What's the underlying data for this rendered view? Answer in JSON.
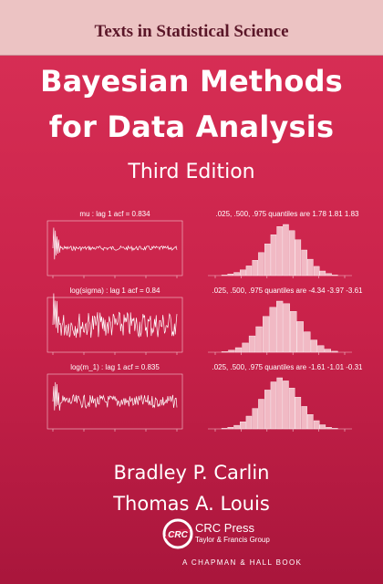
{
  "cover": {
    "series": "Texts in Statistical Science",
    "title_line1": "Bayesian Methods",
    "title_line2": "for Data Analysis",
    "edition": "Third Edition",
    "author1": "Bradley P. Carlin",
    "author2": "Thomas A. Louis",
    "publisher": "CRC Press",
    "publisher_group": "Taylor & Francis Group",
    "book_line": "A CHAPMAN & HALL BOOK",
    "logo_text": "CRC",
    "colors": {
      "background": "#c9224a",
      "band": "#ecc3c3",
      "series_text": "#5a1628",
      "text": "#ffffff"
    }
  },
  "figure": {
    "rows": [
      {
        "trace_title": "mu : lag 1 acf = 0.834",
        "hist_title": ".025, .500, .975 quantiles are 1.78 1.81 1.83",
        "hist_bars": [
          1,
          3,
          6,
          11,
          19,
          30,
          45,
          62,
          80,
          96,
          100,
          88,
          70,
          50,
          32,
          18,
          9,
          4,
          1
        ]
      },
      {
        "trace_title": "log(sigma) : lag 1 acf = 0.84",
        "hist_title": ".025, .500, .975 quantiles are -4.34 -3.97 -3.61",
        "hist_bars": [
          1,
          4,
          9,
          18,
          32,
          50,
          70,
          88,
          100,
          95,
          80,
          60,
          40,
          24,
          13,
          6,
          2
        ]
      },
      {
        "trace_title": "log(m_1) : lag 1 acf = 0.835",
        "hist_title": ".025, .500, .975 quantiles are -1.61 -1.01 -0.31",
        "hist_bars": [
          1,
          3,
          7,
          14,
          25,
          40,
          58,
          76,
          92,
          100,
          94,
          80,
          62,
          44,
          28,
          16,
          8,
          3,
          1
        ]
      }
    ]
  }
}
